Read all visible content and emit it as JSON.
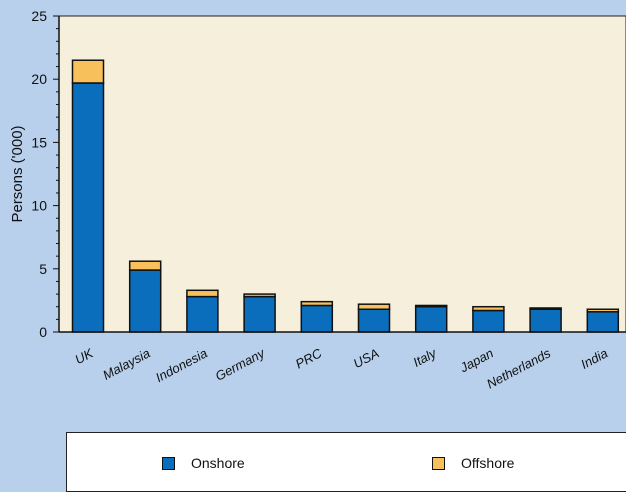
{
  "chart_data": {
    "type": "bar",
    "stacked": true,
    "title": "",
    "xlabel": "",
    "ylabel": "Persons ('000)",
    "ylim": [
      0,
      25
    ],
    "yticks": [
      0,
      5,
      10,
      15,
      20,
      25
    ],
    "grid": false,
    "legend_position": "bottom",
    "categories": [
      "UK",
      "Malaysia",
      "Indonesia",
      "Germany",
      "PRC",
      "USA",
      "Italy",
      "Japan",
      "Netherlands",
      "India"
    ],
    "series": [
      {
        "name": "Onshore",
        "color": "#0a6ebd",
        "values": [
          19.7,
          4.9,
          2.8,
          2.8,
          2.1,
          1.8,
          2.0,
          1.7,
          1.8,
          1.6
        ]
      },
      {
        "name": "Offshore",
        "color": "#f7c05a",
        "values": [
          1.8,
          0.7,
          0.5,
          0.2,
          0.3,
          0.4,
          0.1,
          0.3,
          0.1,
          0.2
        ]
      }
    ],
    "plot_background": "#f5efdc"
  }
}
